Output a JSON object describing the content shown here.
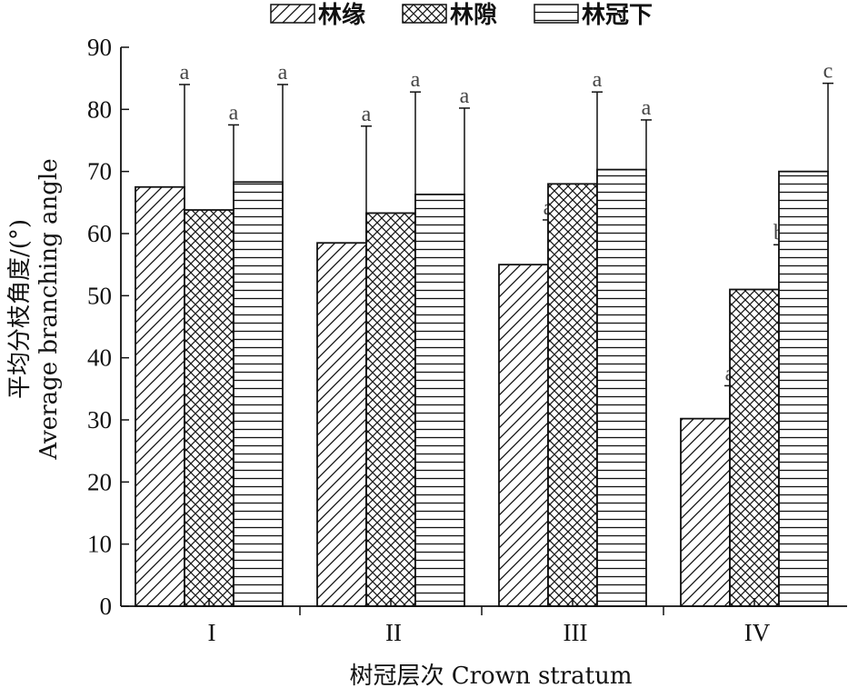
{
  "chart_data": {
    "type": "bar",
    "categories": [
      "I",
      "II",
      "III",
      "IV"
    ],
    "series": [
      {
        "name": "林缘",
        "values": [
          67.5,
          58.5,
          55.0,
          30.2
        ],
        "errors": [
          16.5,
          18.8,
          7.2,
          5.3
        ],
        "sig": [
          "a",
          "a",
          "a",
          "a"
        ],
        "pattern": "diagonal"
      },
      {
        "name": "林隙",
        "values": [
          63.8,
          63.3,
          68.0,
          51.0
        ],
        "errors": [
          13.7,
          19.5,
          14.8,
          7.2
        ],
        "sig": [
          "a",
          "a",
          "a",
          "b"
        ],
        "pattern": "crosshatch"
      },
      {
        "name": "林冠下",
        "values": [
          68.3,
          66.3,
          70.3,
          70.0
        ],
        "errors": [
          15.7,
          13.9,
          8.0,
          14.2
        ],
        "sig": [
          "a",
          "a",
          "a",
          "c"
        ],
        "pattern": "horizontal"
      }
    ],
    "xlabel": "树冠层次 Crown stratum",
    "ylabel_line1": "平均分枝角度/(°)",
    "ylabel_line2": "Average branching angle",
    "ylim": [
      0,
      90
    ],
    "yticks": [
      0,
      10,
      20,
      30,
      40,
      50,
      60,
      70,
      80,
      90
    ],
    "grid": false,
    "legend_position": "top"
  }
}
